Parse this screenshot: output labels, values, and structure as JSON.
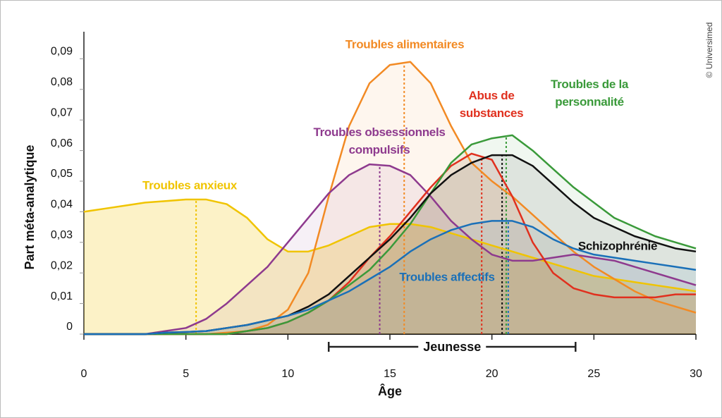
{
  "chart_data": {
    "type": "line",
    "ylabel": "Part méta-analytique",
    "xlabel": "Âge",
    "credit": "© Universimed",
    "xlim": [
      0,
      30
    ],
    "xticks": [
      0,
      5,
      10,
      15,
      20,
      25,
      30
    ],
    "ylim": [
      0,
      0.1
    ],
    "yticks": [
      0,
      {
        "value": 0.01,
        "label": "0,01"
      },
      {
        "value": 0.02,
        "label": "0,02"
      },
      {
        "value": 0.03,
        "label": "0,03"
      },
      {
        "value": 0.04,
        "label": "0,04"
      },
      {
        "value": 0.05,
        "label": "0,05"
      },
      {
        "value": 0.06,
        "label": "0,06"
      },
      {
        "value": 0.07,
        "label": "0,07"
      },
      {
        "value": 0.08,
        "label": "0,08"
      },
      {
        "value": 0.09,
        "label": "0,09"
      }
    ],
    "x": [
      0,
      1,
      2,
      3,
      4,
      5,
      6,
      7,
      8,
      9,
      10,
      11,
      12,
      13,
      14,
      15,
      16,
      17,
      18,
      19,
      20,
      21,
      22,
      23,
      24,
      25,
      26,
      27,
      28,
      29,
      30
    ],
    "series": [
      {
        "name": "Troubles anxieux",
        "color": "#f0c400",
        "peak": 5.5,
        "values": [
          0.04,
          0.041,
          0.042,
          0.043,
          0.0435,
          0.044,
          0.044,
          0.0425,
          0.038,
          0.031,
          0.027,
          0.027,
          0.029,
          0.032,
          0.035,
          0.036,
          0.036,
          0.035,
          0.033,
          0.031,
          0.029,
          0.027,
          0.025,
          0.023,
          0.021,
          0.019,
          0.018,
          0.017,
          0.016,
          0.015,
          0.014
        ]
      },
      {
        "name": "Troubles alimentaires",
        "color": "#f28a24",
        "peak": 15.7,
        "values": [
          0,
          0,
          0,
          0,
          0,
          0,
          0,
          0.0005,
          0.001,
          0.003,
          0.008,
          0.02,
          0.045,
          0.068,
          0.082,
          0.088,
          0.089,
          0.082,
          0.068,
          0.056,
          0.05,
          0.045,
          0.039,
          0.033,
          0.027,
          0.022,
          0.018,
          0.014,
          0.011,
          0.009,
          0.007
        ]
      },
      {
        "name": "Troubles obsessionnels compulsifs",
        "color": "#8e3a8e",
        "peak": 14.5,
        "values": [
          0,
          0,
          0,
          0,
          0.001,
          0.002,
          0.005,
          0.01,
          0.016,
          0.022,
          0.03,
          0.038,
          0.046,
          0.052,
          0.0555,
          0.055,
          0.052,
          0.045,
          0.037,
          0.031,
          0.026,
          0.024,
          0.024,
          0.025,
          0.026,
          0.025,
          0.024,
          0.022,
          0.02,
          0.018,
          0.016
        ]
      },
      {
        "name": "Abus de substances",
        "color": "#e0301e",
        "peak": 19.5,
        "values": [
          0,
          0,
          0,
          0,
          0,
          0,
          0,
          0,
          0.001,
          0.002,
          0.004,
          0.007,
          0.011,
          0.017,
          0.025,
          0.032,
          0.04,
          0.048,
          0.055,
          0.059,
          0.057,
          0.045,
          0.03,
          0.02,
          0.015,
          0.013,
          0.012,
          0.012,
          0.012,
          0.013,
          0.013
        ]
      },
      {
        "name": "Troubles de la personnalité",
        "color": "#3a9a3a",
        "peak": 20.7,
        "values": [
          0,
          0,
          0,
          0,
          0,
          0,
          0,
          0,
          0.001,
          0.002,
          0.004,
          0.007,
          0.011,
          0.016,
          0.021,
          0.028,
          0.036,
          0.046,
          0.056,
          0.062,
          0.064,
          0.065,
          0.06,
          0.054,
          0.048,
          0.043,
          0.038,
          0.035,
          0.032,
          0.03,
          0.028
        ]
      },
      {
        "name": "Schizophrénie",
        "color": "#111111",
        "peak": 20.5,
        "values": [
          0,
          0,
          0,
          0,
          0.0005,
          0.0007,
          0.001,
          0.002,
          0.003,
          0.0045,
          0.006,
          0.009,
          0.013,
          0.019,
          0.025,
          0.031,
          0.038,
          0.046,
          0.052,
          0.056,
          0.0585,
          0.0585,
          0.055,
          0.049,
          0.043,
          0.038,
          0.035,
          0.032,
          0.03,
          0.028,
          0.027
        ]
      },
      {
        "name": "Troubles affectifs",
        "color": "#1a70b8",
        "peak": 20.8,
        "values": [
          0,
          0,
          0,
          0,
          0.0005,
          0.0007,
          0.001,
          0.002,
          0.003,
          0.0045,
          0.006,
          0.008,
          0.011,
          0.014,
          0.018,
          0.022,
          0.027,
          0.031,
          0.034,
          0.036,
          0.037,
          0.037,
          0.035,
          0.031,
          0.028,
          0.026,
          0.025,
          0.024,
          0.023,
          0.022,
          0.021
        ]
      }
    ],
    "range": {
      "label": "Jeunesse",
      "from": 12,
      "to": 24.1
    }
  }
}
